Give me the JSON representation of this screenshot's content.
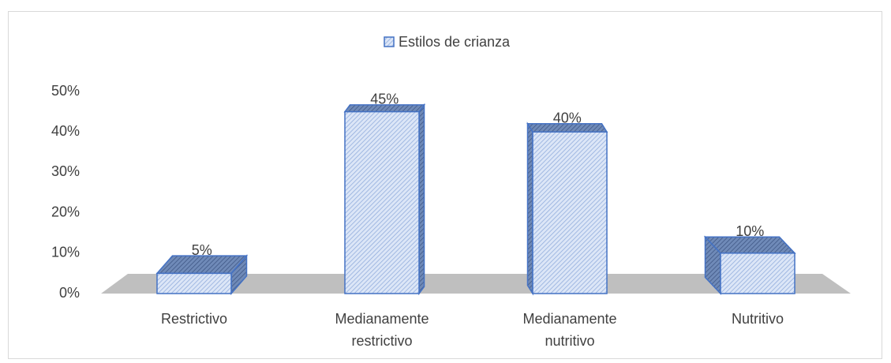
{
  "chart_data": {
    "type": "bar3d",
    "categories": [
      "Restrictivo",
      "Medianamente restrictivo",
      "Medianamente nutritivo",
      "Nutritivo"
    ],
    "series": [
      {
        "name": "Estilos de crianza",
        "color": "#c9d8f2",
        "values": [
          5,
          45,
          40,
          10
        ],
        "value_labels": [
          "5%",
          "45%",
          "40%",
          "10%"
        ]
      }
    ],
    "ylim": [
      0,
      50
    ],
    "yticks": [
      {
        "value": 0,
        "label": "0%"
      },
      {
        "value": 10,
        "label": "10%"
      },
      {
        "value": 20,
        "label": "20%"
      },
      {
        "value": 30,
        "label": "30%"
      },
      {
        "value": 40,
        "label": "40%"
      },
      {
        "value": 50,
        "label": "50%"
      }
    ],
    "legend": "top"
  }
}
